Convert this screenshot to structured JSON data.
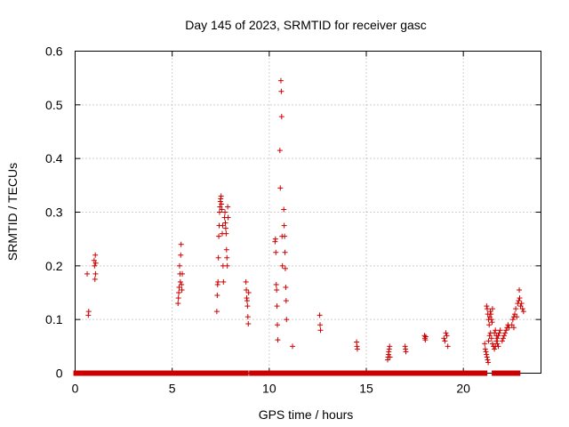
{
  "chart_data": {
    "type": "scatter",
    "title": "Day 145 of 2023, SRMTID for receiver gasc",
    "xlabel": "GPS time / hours",
    "ylabel": "SRMTID / TECUs",
    "xlim": [
      0,
      24
    ],
    "ylim": [
      0,
      0.6
    ],
    "xticks": [
      0,
      5,
      10,
      15,
      20
    ],
    "xtick_labels": [
      "0",
      "5",
      "10",
      "15",
      "20"
    ],
    "yticks": [
      0,
      0.1,
      0.2,
      0.3,
      0.4,
      0.5,
      0.6
    ],
    "ytick_labels": [
      "0",
      "0.1",
      "0.2",
      "0.3",
      "0.4",
      "0.5",
      "0.6"
    ],
    "grid": true,
    "marker": "+",
    "color": "#cc0000",
    "baseline_segments": [
      [
        0.05,
        3.5
      ],
      [
        3.7,
        4.9
      ],
      [
        5.0,
        7.8
      ],
      [
        7.9,
        8.8
      ],
      [
        9.1,
        10.0
      ],
      [
        10.1,
        21.1
      ],
      [
        21.6,
        22.0
      ],
      [
        22.2,
        22.5
      ],
      [
        22.6,
        22.8
      ]
    ],
    "series": [
      {
        "name": "SRMTID",
        "points": [
          [
            0.62,
            0.185
          ],
          [
            0.68,
            0.108
          ],
          [
            0.7,
            0.115
          ],
          [
            0.98,
            0.21
          ],
          [
            1.0,
            0.2
          ],
          [
            1.02,
            0.175
          ],
          [
            1.04,
            0.22
          ],
          [
            1.05,
            0.185
          ],
          [
            1.06,
            0.205
          ],
          [
            5.3,
            0.13
          ],
          [
            5.32,
            0.14
          ],
          [
            5.34,
            0.15
          ],
          [
            5.36,
            0.16
          ],
          [
            5.38,
            0.2
          ],
          [
            5.4,
            0.185
          ],
          [
            5.42,
            0.17
          ],
          [
            5.44,
            0.22
          ],
          [
            5.46,
            0.24
          ],
          [
            5.48,
            0.165
          ],
          [
            5.5,
            0.155
          ],
          [
            5.52,
            0.185
          ],
          [
            7.3,
            0.115
          ],
          [
            7.32,
            0.145
          ],
          [
            7.34,
            0.165
          ],
          [
            7.36,
            0.17
          ],
          [
            7.38,
            0.215
          ],
          [
            7.4,
            0.255
          ],
          [
            7.42,
            0.275
          ],
          [
            7.44,
            0.3
          ],
          [
            7.46,
            0.31
          ],
          [
            7.48,
            0.32
          ],
          [
            7.5,
            0.325
          ],
          [
            7.52,
            0.33
          ],
          [
            7.54,
            0.315
          ],
          [
            7.56,
            0.305
          ],
          [
            7.58,
            0.26
          ],
          [
            7.6,
            0.275
          ],
          [
            7.62,
            0.2
          ],
          [
            7.64,
            0.17
          ],
          [
            7.7,
            0.29
          ],
          [
            7.72,
            0.3
          ],
          [
            7.74,
            0.28
          ],
          [
            7.76,
            0.27
          ],
          [
            7.78,
            0.26
          ],
          [
            7.8,
            0.23
          ],
          [
            7.82,
            0.215
          ],
          [
            7.84,
            0.2
          ],
          [
            7.86,
            0.31
          ],
          [
            7.88,
            0.29
          ],
          [
            8.8,
            0.17
          ],
          [
            8.82,
            0.155
          ],
          [
            8.84,
            0.14
          ],
          [
            8.86,
            0.135
          ],
          [
            8.88,
            0.125
          ],
          [
            8.9,
            0.105
          ],
          [
            8.92,
            0.092
          ],
          [
            8.94,
            0.15
          ],
          [
            10.3,
            0.245
          ],
          [
            10.32,
            0.25
          ],
          [
            10.34,
            0.225
          ],
          [
            10.36,
            0.165
          ],
          [
            10.38,
            0.155
          ],
          [
            10.4,
            0.125
          ],
          [
            10.42,
            0.09
          ],
          [
            10.44,
            0.062
          ],
          [
            10.55,
            0.415
          ],
          [
            10.57,
            0.345
          ],
          [
            10.6,
            0.545
          ],
          [
            10.62,
            0.525
          ],
          [
            10.64,
            0.478
          ],
          [
            10.66,
            0.255
          ],
          [
            10.68,
            0.2
          ],
          [
            10.75,
            0.305
          ],
          [
            10.77,
            0.275
          ],
          [
            10.79,
            0.255
          ],
          [
            10.81,
            0.225
          ],
          [
            10.83,
            0.195
          ],
          [
            10.85,
            0.16
          ],
          [
            10.87,
            0.135
          ],
          [
            10.89,
            0.1
          ],
          [
            11.2,
            0.05
          ],
          [
            12.6,
            0.108
          ],
          [
            12.62,
            0.09
          ],
          [
            12.64,
            0.08
          ],
          [
            14.5,
            0.058
          ],
          [
            14.52,
            0.05
          ],
          [
            14.54,
            0.045
          ],
          [
            16.1,
            0.025
          ],
          [
            16.12,
            0.03
          ],
          [
            16.14,
            0.035
          ],
          [
            16.16,
            0.04
          ],
          [
            16.18,
            0.045
          ],
          [
            16.2,
            0.05
          ],
          [
            16.22,
            0.03
          ],
          [
            17.0,
            0.05
          ],
          [
            17.02,
            0.045
          ],
          [
            17.04,
            0.04
          ],
          [
            18.0,
            0.07
          ],
          [
            18.02,
            0.065
          ],
          [
            18.04,
            0.062
          ],
          [
            18.06,
            0.068
          ],
          [
            19.0,
            0.065
          ],
          [
            19.05,
            0.06
          ],
          [
            19.1,
            0.075
          ],
          [
            19.15,
            0.07
          ],
          [
            19.2,
            0.05
          ],
          [
            21.1,
            0.055
          ],
          [
            21.13,
            0.045
          ],
          [
            21.16,
            0.04
          ],
          [
            21.19,
            0.035
          ],
          [
            21.22,
            0.03
          ],
          [
            21.25,
            0.025
          ],
          [
            21.28,
            0.02
          ],
          [
            21.2,
            0.125
          ],
          [
            21.23,
            0.12
          ],
          [
            21.26,
            0.11
          ],
          [
            21.3,
            0.1
          ],
          [
            21.33,
            0.09
          ],
          [
            21.36,
            0.105
          ],
          [
            21.39,
            0.115
          ],
          [
            21.42,
            0.11
          ],
          [
            21.45,
            0.1
          ],
          [
            21.48,
            0.095
          ],
          [
            21.5,
            0.12
          ],
          [
            21.3,
            0.06
          ],
          [
            21.35,
            0.07
          ],
          [
            21.4,
            0.075
          ],
          [
            21.45,
            0.065
          ],
          [
            21.5,
            0.055
          ],
          [
            21.55,
            0.05
          ],
          [
            21.6,
            0.045
          ],
          [
            21.65,
            0.05
          ],
          [
            21.7,
            0.06
          ],
          [
            21.6,
            0.075
          ],
          [
            21.65,
            0.08
          ],
          [
            21.7,
            0.07
          ],
          [
            21.75,
            0.065
          ],
          [
            21.8,
            0.07
          ],
          [
            21.85,
            0.075
          ],
          [
            21.9,
            0.08
          ],
          [
            21.75,
            0.055
          ],
          [
            21.8,
            0.05
          ],
          [
            22.0,
            0.06
          ],
          [
            22.05,
            0.065
          ],
          [
            22.1,
            0.07
          ],
          [
            22.15,
            0.075
          ],
          [
            22.2,
            0.08
          ],
          [
            22.25,
            0.085
          ],
          [
            22.3,
            0.09
          ],
          [
            22.35,
            0.085
          ],
          [
            22.5,
            0.09
          ],
          [
            22.55,
            0.1
          ],
          [
            22.6,
            0.105
          ],
          [
            22.65,
            0.11
          ],
          [
            22.7,
            0.12
          ],
          [
            22.75,
            0.105
          ],
          [
            22.6,
            0.085
          ],
          [
            22.8,
            0.13
          ],
          [
            22.85,
            0.135
          ],
          [
            22.88,
            0.155
          ],
          [
            22.9,
            0.14
          ],
          [
            22.95,
            0.125
          ],
          [
            23.0,
            0.13
          ],
          [
            23.05,
            0.12
          ],
          [
            23.1,
            0.115
          ]
        ]
      }
    ]
  }
}
